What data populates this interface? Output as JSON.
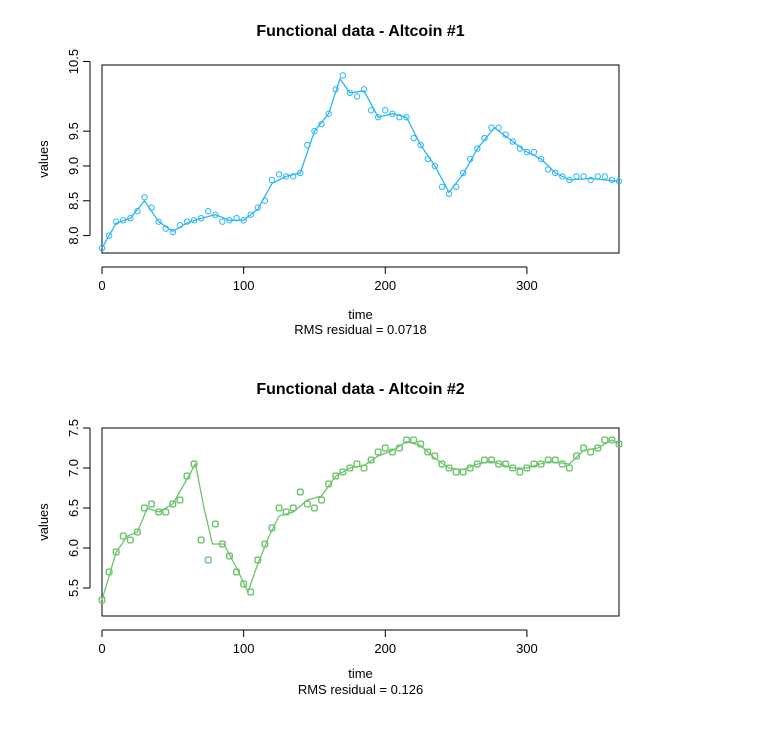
{
  "chart_data": [
    {
      "type": "scatter",
      "title": "Functional data - Altcoin #1",
      "xlabel": "time",
      "ylabel": "values",
      "subtitle": "RMS residual = 0.0718",
      "xlim": [
        0,
        365
      ],
      "ylim": [
        7.75,
        10.45
      ],
      "x_ticks": [
        0,
        100,
        200,
        300
      ],
      "y_ticks": [
        8.0,
        8.5,
        9.0,
        9.5,
        10.5
      ],
      "y_tick_labels": [
        "8.0",
        "8.5",
        "9.0",
        "9.5",
        "10.5"
      ],
      "color": "#29b6f6",
      "marker": "circle",
      "series": [
        {
          "points": [
            [
              0,
              7.82
            ],
            [
              5,
              8.0
            ],
            [
              10,
              8.2
            ],
            [
              15,
              8.22
            ],
            [
              20,
              8.25
            ],
            [
              25,
              8.35
            ],
            [
              30,
              8.55
            ],
            [
              35,
              8.4
            ],
            [
              40,
              8.2
            ],
            [
              45,
              8.1
            ],
            [
              50,
              8.05
            ],
            [
              55,
              8.15
            ],
            [
              60,
              8.2
            ],
            [
              65,
              8.22
            ],
            [
              70,
              8.25
            ],
            [
              75,
              8.35
            ],
            [
              80,
              8.3
            ],
            [
              85,
              8.2
            ],
            [
              90,
              8.22
            ],
            [
              95,
              8.25
            ],
            [
              100,
              8.22
            ],
            [
              105,
              8.3
            ],
            [
              110,
              8.4
            ],
            [
              115,
              8.5
            ],
            [
              120,
              8.8
            ],
            [
              125,
              8.88
            ],
            [
              130,
              8.85
            ],
            [
              135,
              8.85
            ],
            [
              140,
              8.9
            ],
            [
              145,
              9.3
            ],
            [
              150,
              9.5
            ],
            [
              155,
              9.6
            ],
            [
              160,
              9.75
            ],
            [
              165,
              10.1
            ],
            [
              170,
              10.3
            ],
            [
              175,
              10.05
            ],
            [
              180,
              10.0
            ],
            [
              185,
              10.1
            ],
            [
              190,
              9.8
            ],
            [
              195,
              9.7
            ],
            [
              200,
              9.8
            ],
            [
              205,
              9.75
            ],
            [
              210,
              9.7
            ],
            [
              215,
              9.7
            ],
            [
              220,
              9.4
            ],
            [
              225,
              9.3
            ],
            [
              230,
              9.1
            ],
            [
              235,
              9.0
            ],
            [
              240,
              8.7
            ],
            [
              245,
              8.6
            ],
            [
              250,
              8.7
            ],
            [
              255,
              8.9
            ],
            [
              260,
              9.1
            ],
            [
              265,
              9.25
            ],
            [
              270,
              9.4
            ],
            [
              275,
              9.55
            ],
            [
              280,
              9.55
            ],
            [
              285,
              9.45
            ],
            [
              290,
              9.35
            ],
            [
              295,
              9.25
            ],
            [
              300,
              9.2
            ],
            [
              305,
              9.2
            ],
            [
              310,
              9.1
            ],
            [
              315,
              8.95
            ],
            [
              320,
              8.9
            ],
            [
              325,
              8.85
            ],
            [
              330,
              8.8
            ],
            [
              335,
              8.85
            ],
            [
              340,
              8.85
            ],
            [
              345,
              8.8
            ],
            [
              350,
              8.85
            ],
            [
              355,
              8.85
            ],
            [
              360,
              8.8
            ],
            [
              365,
              8.78
            ]
          ],
          "curve": [
            [
              0,
              7.82
            ],
            [
              10,
              8.18
            ],
            [
              20,
              8.25
            ],
            [
              30,
              8.5
            ],
            [
              40,
              8.2
            ],
            [
              50,
              8.06
            ],
            [
              60,
              8.18
            ],
            [
              70,
              8.25
            ],
            [
              80,
              8.3
            ],
            [
              90,
              8.22
            ],
            [
              100,
              8.22
            ],
            [
              110,
              8.38
            ],
            [
              120,
              8.75
            ],
            [
              130,
              8.85
            ],
            [
              140,
              8.9
            ],
            [
              150,
              9.5
            ],
            [
              160,
              9.75
            ],
            [
              168,
              10.25
            ],
            [
              175,
              10.05
            ],
            [
              185,
              10.08
            ],
            [
              195,
              9.7
            ],
            [
              205,
              9.75
            ],
            [
              215,
              9.7
            ],
            [
              225,
              9.3
            ],
            [
              235,
              9.0
            ],
            [
              245,
              8.62
            ],
            [
              255,
              8.88
            ],
            [
              265,
              9.25
            ],
            [
              277,
              9.55
            ],
            [
              290,
              9.35
            ],
            [
              300,
              9.2
            ],
            [
              310,
              9.1
            ],
            [
              320,
              8.9
            ],
            [
              330,
              8.8
            ],
            [
              345,
              8.82
            ],
            [
              365,
              8.78
            ]
          ]
        }
      ]
    },
    {
      "type": "scatter",
      "title": "Functional data - Altcoin #2",
      "xlabel": "time",
      "ylabel": "values",
      "subtitle": "RMS residual = 0.126",
      "xlim": [
        0,
        365
      ],
      "ylim": [
        5.15,
        7.5
      ],
      "x_ticks": [
        0,
        100,
        200,
        300
      ],
      "y_ticks": [
        5.5,
        6.0,
        6.5,
        7.0,
        7.5
      ],
      "y_tick_labels": [
        "5.5",
        "6.0",
        "6.5",
        "7.0",
        "7.5"
      ],
      "color": "#6cc46c",
      "marker": "square",
      "series": [
        {
          "points": [
            [
              0,
              5.35
            ],
            [
              5,
              5.7
            ],
            [
              10,
              5.95
            ],
            [
              15,
              6.15
            ],
            [
              20,
              6.1
            ],
            [
              25,
              6.2
            ],
            [
              30,
              6.5
            ],
            [
              35,
              6.55
            ],
            [
              40,
              6.45
            ],
            [
              45,
              6.45
            ],
            [
              50,
              6.55
            ],
            [
              55,
              6.6
            ],
            [
              60,
              6.9
            ],
            [
              65,
              7.05
            ],
            [
              70,
              6.1
            ],
            [
              75,
              5.85
            ],
            [
              80,
              6.3
            ],
            [
              85,
              6.05
            ],
            [
              90,
              5.9
            ],
            [
              95,
              5.7
            ],
            [
              100,
              5.55
            ],
            [
              105,
              5.45
            ],
            [
              110,
              5.85
            ],
            [
              115,
              6.05
            ],
            [
              120,
              6.25
            ],
            [
              125,
              6.5
            ],
            [
              130,
              6.45
            ],
            [
              135,
              6.5
            ],
            [
              140,
              6.7
            ],
            [
              145,
              6.55
            ],
            [
              150,
              6.5
            ],
            [
              155,
              6.6
            ],
            [
              160,
              6.8
            ],
            [
              165,
              6.9
            ],
            [
              170,
              6.95
            ],
            [
              175,
              7.0
            ],
            [
              180,
              7.05
            ],
            [
              185,
              7.0
            ],
            [
              190,
              7.1
            ],
            [
              195,
              7.2
            ],
            [
              200,
              7.25
            ],
            [
              205,
              7.2
            ],
            [
              210,
              7.25
            ],
            [
              215,
              7.35
            ],
            [
              220,
              7.35
            ],
            [
              225,
              7.3
            ],
            [
              230,
              7.2
            ],
            [
              235,
              7.15
            ],
            [
              240,
              7.05
            ],
            [
              245,
              7.0
            ],
            [
              250,
              6.95
            ],
            [
              255,
              6.95
            ],
            [
              260,
              7.0
            ],
            [
              265,
              7.05
            ],
            [
              270,
              7.1
            ],
            [
              275,
              7.1
            ],
            [
              280,
              7.05
            ],
            [
              285,
              7.05
            ],
            [
              290,
              7.0
            ],
            [
              295,
              6.95
            ],
            [
              300,
              7.0
            ],
            [
              305,
              7.05
            ],
            [
              310,
              7.05
            ],
            [
              315,
              7.1
            ],
            [
              320,
              7.1
            ],
            [
              325,
              7.05
            ],
            [
              330,
              7.0
            ],
            [
              335,
              7.15
            ],
            [
              340,
              7.25
            ],
            [
              345,
              7.2
            ],
            [
              350,
              7.25
            ],
            [
              355,
              7.35
            ],
            [
              360,
              7.35
            ],
            [
              365,
              7.3
            ]
          ],
          "curve": [
            [
              0,
              5.35
            ],
            [
              5,
              5.65
            ],
            [
              10,
              5.95
            ],
            [
              18,
              6.15
            ],
            [
              25,
              6.2
            ],
            [
              32,
              6.5
            ],
            [
              40,
              6.45
            ],
            [
              50,
              6.55
            ],
            [
              58,
              6.8
            ],
            [
              66,
              7.05
            ],
            [
              72,
              6.5
            ],
            [
              78,
              6.05
            ],
            [
              86,
              6.05
            ],
            [
              95,
              5.75
            ],
            [
              103,
              5.45
            ],
            [
              110,
              5.8
            ],
            [
              118,
              6.15
            ],
            [
              125,
              6.4
            ],
            [
              135,
              6.45
            ],
            [
              145,
              6.6
            ],
            [
              155,
              6.65
            ],
            [
              165,
              6.9
            ],
            [
              175,
              7.0
            ],
            [
              185,
              7.03
            ],
            [
              195,
              7.15
            ],
            [
              205,
              7.22
            ],
            [
              215,
              7.33
            ],
            [
              225,
              7.28
            ],
            [
              235,
              7.12
            ],
            [
              245,
              7.0
            ],
            [
              255,
              6.98
            ],
            [
              265,
              7.05
            ],
            [
              275,
              7.08
            ],
            [
              290,
              7.0
            ],
            [
              300,
              7.0
            ],
            [
              315,
              7.08
            ],
            [
              330,
              7.05
            ],
            [
              340,
              7.22
            ],
            [
              350,
              7.25
            ],
            [
              360,
              7.35
            ],
            [
              365,
              7.3
            ]
          ]
        }
      ]
    }
  ]
}
